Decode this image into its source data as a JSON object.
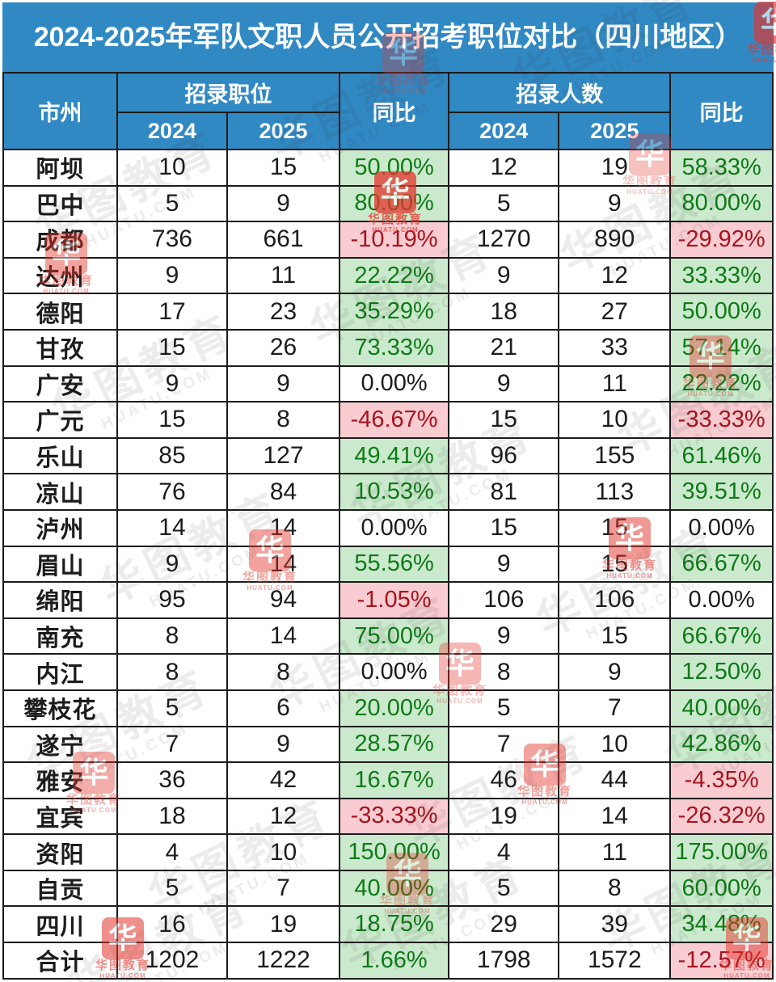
{
  "title": "2024-2025年军队文职人员公开招考职位对比（四川地区）",
  "header": {
    "city": "市州",
    "positions_group": "招录职位",
    "people_group": "招录人数",
    "yoy_positions": "同比",
    "yoy_people": "同比",
    "year_2024": "2024",
    "year_2025": "2025"
  },
  "colors": {
    "header_blue": "#3189C4",
    "positive_bg": "#CBEACD",
    "positive_text": "#0E7A17",
    "negative_bg": "#F8CCD1",
    "negative_text": "#A6141F",
    "border": "#1C1C1C",
    "stamp_red": "#E3342B"
  },
  "watermark": {
    "brand": "华图教育",
    "domain": "HUATU.COM",
    "logo_char": "华"
  },
  "chart_data": {
    "type": "table",
    "title": "2024-2025年军队文职人员公开招考职位对比（四川地区）",
    "columns": [
      "市州",
      "招录职位 2024",
      "招录职位 2025",
      "招录职位同比",
      "招录人数 2024",
      "招录人数 2025",
      "招录人数同比"
    ],
    "rows": [
      [
        "阿坝",
        "10",
        "15",
        "50.00%",
        "12",
        "19",
        "58.33%"
      ],
      [
        "巴中",
        "5",
        "9",
        "80.00%",
        "5",
        "9",
        "80.00%"
      ],
      [
        "成都",
        "736",
        "661",
        "-10.19%",
        "1270",
        "890",
        "-29.92%"
      ],
      [
        "达州",
        "9",
        "11",
        "22.22%",
        "9",
        "12",
        "33.33%"
      ],
      [
        "德阳",
        "17",
        "23",
        "35.29%",
        "18",
        "27",
        "50.00%"
      ],
      [
        "甘孜",
        "15",
        "26",
        "73.33%",
        "21",
        "33",
        "57.14%"
      ],
      [
        "广安",
        "9",
        "9",
        "0.00%",
        "9",
        "11",
        "22.22%"
      ],
      [
        "广元",
        "15",
        "8",
        "-46.67%",
        "15",
        "10",
        "-33.33%"
      ],
      [
        "乐山",
        "85",
        "127",
        "49.41%",
        "96",
        "155",
        "61.46%"
      ],
      [
        "凉山",
        "76",
        "84",
        "10.53%",
        "81",
        "113",
        "39.51%"
      ],
      [
        "泸州",
        "14",
        "14",
        "0.00%",
        "15",
        "15",
        "0.00%"
      ],
      [
        "眉山",
        "9",
        "14",
        "55.56%",
        "9",
        "15",
        "66.67%"
      ],
      [
        "绵阳",
        "95",
        "94",
        "-1.05%",
        "106",
        "106",
        "0.00%"
      ],
      [
        "南充",
        "8",
        "14",
        "75.00%",
        "9",
        "15",
        "66.67%"
      ],
      [
        "内江",
        "8",
        "8",
        "0.00%",
        "8",
        "9",
        "12.50%"
      ],
      [
        "攀枝花",
        "5",
        "6",
        "20.00%",
        "5",
        "7",
        "40.00%"
      ],
      [
        "遂宁",
        "7",
        "9",
        "28.57%",
        "7",
        "10",
        "42.86%"
      ],
      [
        "雅安",
        "36",
        "42",
        "16.67%",
        "46",
        "44",
        "-4.35%"
      ],
      [
        "宜宾",
        "18",
        "12",
        "-33.33%",
        "19",
        "14",
        "-26.32%"
      ],
      [
        "资阳",
        "4",
        "10",
        "150.00%",
        "4",
        "11",
        "175.00%"
      ],
      [
        "自贡",
        "5",
        "7",
        "40.00%",
        "5",
        "8",
        "60.00%"
      ],
      [
        "四川",
        "16",
        "19",
        "18.75%",
        "29",
        "39",
        "34.48%"
      ],
      [
        "合计",
        "1202",
        "1222",
        "1.66%",
        "1798",
        "1572",
        "-12.57%"
      ]
    ]
  }
}
